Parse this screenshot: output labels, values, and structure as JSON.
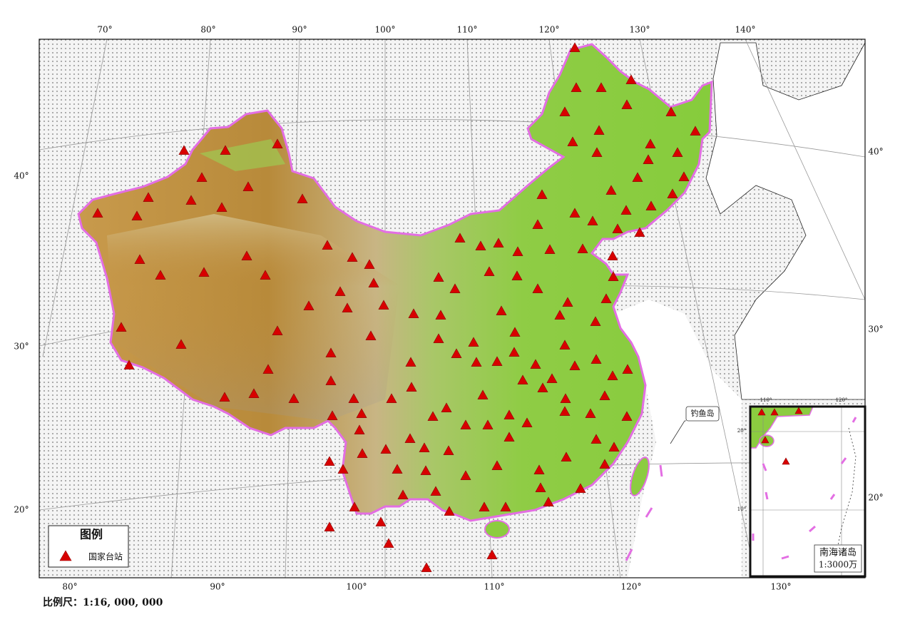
{
  "map": {
    "lon_labels_top": [
      "70°",
      "80°",
      "90°",
      "100°",
      "110°",
      "120°",
      "130°",
      "140°"
    ],
    "lon_labels_bottom": [
      "80°",
      "90°",
      "100°",
      "110°",
      "120°",
      "130°"
    ],
    "lat_labels_left": [
      "40°",
      "30°",
      "20°"
    ],
    "lat_labels_right": [
      "40°",
      "30°",
      "20°"
    ],
    "legend": {
      "title": "图例",
      "items": [
        "国家台站"
      ]
    },
    "annotation": "钓鱼岛",
    "inset": {
      "title": "南海诸岛",
      "scale": "1:3000万",
      "lon_labels": [
        "110°",
        "120°"
      ],
      "lat_labels": [
        "20°",
        "10°"
      ]
    },
    "scale": "比例尺：1:16, 000, 000"
  }
}
